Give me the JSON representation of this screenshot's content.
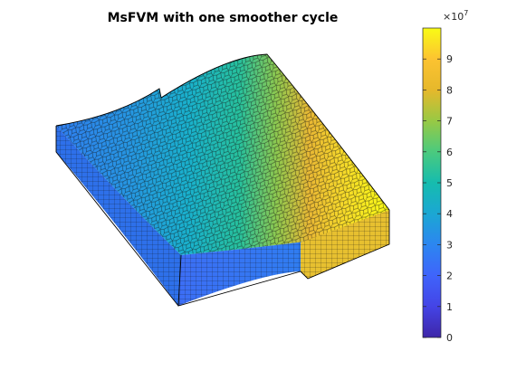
{
  "figure": {
    "title": "MsFVM with one smoother cycle"
  },
  "colorbar": {
    "colormap": "parula",
    "min": 0,
    "max": 10,
    "exponent_base": "×10",
    "exponent_power": "7",
    "ticks": [
      "0",
      "1",
      "2",
      "3",
      "4",
      "5",
      "6",
      "7",
      "8",
      "9"
    ],
    "stops": [
      "#3e26a8",
      "#4444e6",
      "#3f64fb",
      "#2c86f0",
      "#1ba7d3",
      "#16bcae",
      "#4bca7e",
      "#98c944",
      "#e6b82b",
      "#fcc331",
      "#f9fb15"
    ]
  }
}
